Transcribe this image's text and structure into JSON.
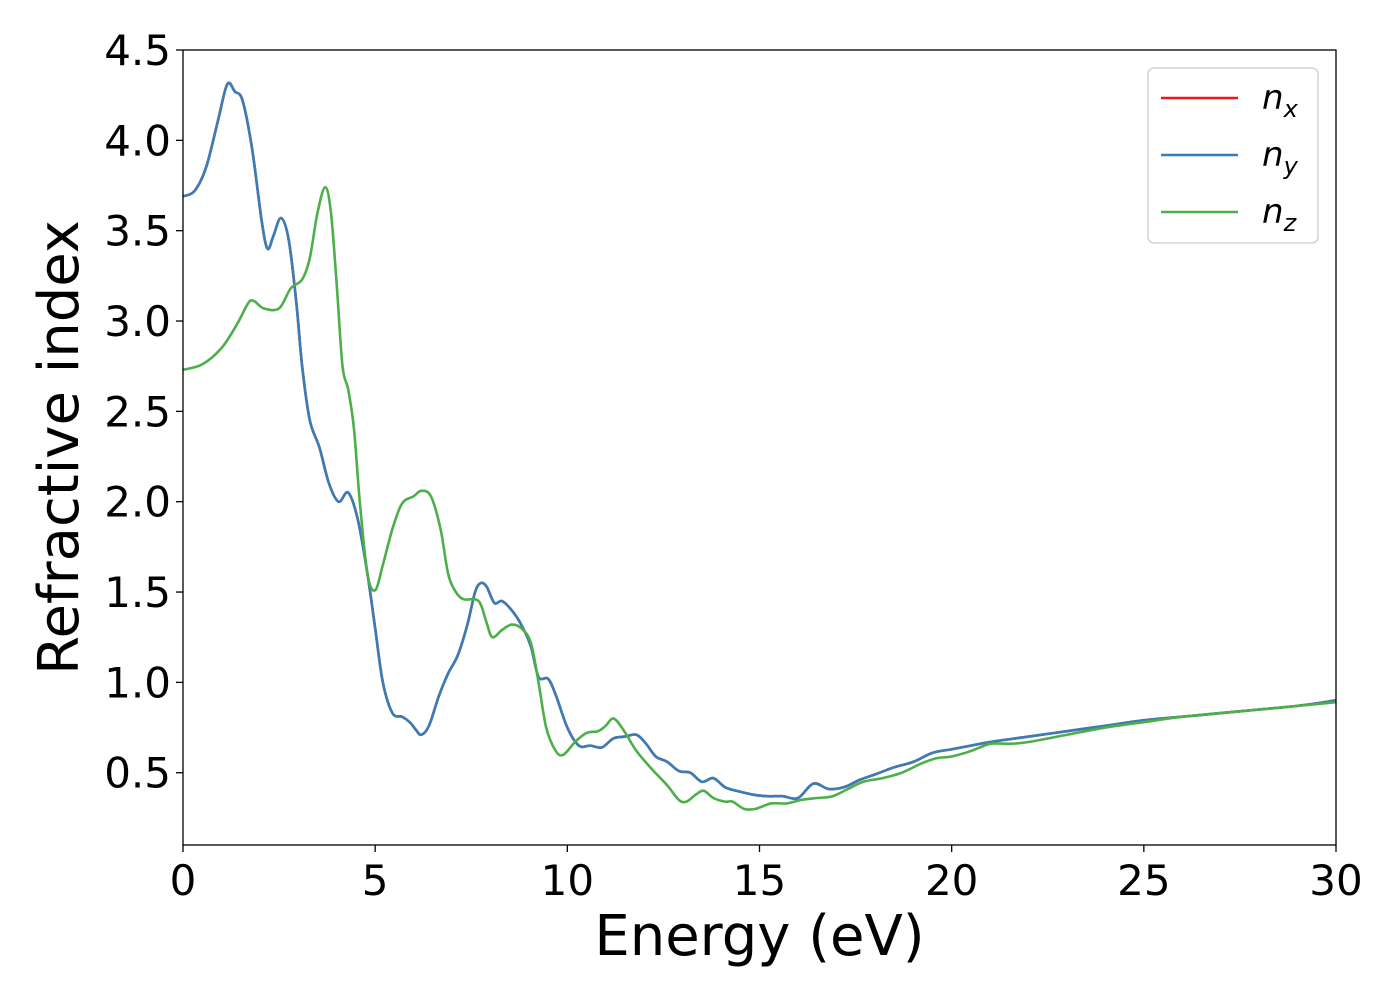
{
  "chart_data": {
    "type": "line",
    "title": "",
    "xlabel": "Energy (eV)",
    "ylabel": "Refractive index",
    "xlim": [
      0,
      30
    ],
    "ylim": [
      0.1,
      4.5
    ],
    "x_ticks": [
      0,
      5,
      10,
      15,
      20,
      25,
      30
    ],
    "x_tick_labels": [
      "0",
      "5",
      "10",
      "15",
      "20",
      "25",
      "30"
    ],
    "y_ticks": [
      0.5,
      1.0,
      1.5,
      2.0,
      2.5,
      3.0,
      3.5,
      4.0,
      4.5
    ],
    "y_tick_labels": [
      "0.5",
      "1.0",
      "1.5",
      "2.0",
      "2.5",
      "3.0",
      "3.5",
      "4.0",
      "4.5"
    ],
    "grid": false,
    "legend_position": "top-right",
    "series": [
      {
        "name": "n",
        "sub": "x",
        "color": "#e41a1c",
        "points": [
          [
            0,
            3.69
          ],
          [
            0.3,
            3.72
          ],
          [
            0.6,
            3.85
          ],
          [
            0.9,
            4.1
          ],
          [
            1.15,
            4.31
          ],
          [
            1.35,
            4.27
          ],
          [
            1.55,
            4.22
          ],
          [
            1.8,
            3.95
          ],
          [
            2.05,
            3.55
          ],
          [
            2.2,
            3.4
          ],
          [
            2.35,
            3.47
          ],
          [
            2.55,
            3.57
          ],
          [
            2.75,
            3.45
          ],
          [
            2.95,
            3.1
          ],
          [
            3.1,
            2.75
          ],
          [
            3.3,
            2.45
          ],
          [
            3.55,
            2.3
          ],
          [
            3.8,
            2.1
          ],
          [
            4.05,
            2.0
          ],
          [
            4.3,
            2.05
          ],
          [
            4.55,
            1.9
          ],
          [
            4.8,
            1.6
          ],
          [
            5.0,
            1.3
          ],
          [
            5.2,
            1.0
          ],
          [
            5.45,
            0.83
          ],
          [
            5.7,
            0.81
          ],
          [
            5.9,
            0.78
          ],
          [
            6.05,
            0.74
          ],
          [
            6.2,
            0.71
          ],
          [
            6.4,
            0.76
          ],
          [
            6.65,
            0.92
          ],
          [
            6.9,
            1.05
          ],
          [
            7.15,
            1.15
          ],
          [
            7.4,
            1.32
          ],
          [
            7.6,
            1.5
          ],
          [
            7.75,
            1.55
          ],
          [
            7.9,
            1.53
          ],
          [
            8.1,
            1.44
          ],
          [
            8.3,
            1.45
          ],
          [
            8.55,
            1.4
          ],
          [
            8.8,
            1.32
          ],
          [
            9.05,
            1.2
          ],
          [
            9.25,
            1.03
          ],
          [
            9.5,
            1.02
          ],
          [
            9.7,
            0.93
          ],
          [
            10.0,
            0.75
          ],
          [
            10.3,
            0.65
          ],
          [
            10.6,
            0.65
          ],
          [
            10.9,
            0.64
          ],
          [
            11.2,
            0.69
          ],
          [
            11.5,
            0.7
          ],
          [
            11.8,
            0.71
          ],
          [
            12.05,
            0.66
          ],
          [
            12.3,
            0.59
          ],
          [
            12.6,
            0.56
          ],
          [
            12.9,
            0.51
          ],
          [
            13.2,
            0.5
          ],
          [
            13.5,
            0.45
          ],
          [
            13.8,
            0.47
          ],
          [
            14.1,
            0.42
          ],
          [
            14.4,
            0.4
          ],
          [
            14.8,
            0.38
          ],
          [
            15.2,
            0.37
          ],
          [
            15.6,
            0.37
          ],
          [
            16.0,
            0.36
          ],
          [
            16.4,
            0.44
          ],
          [
            16.8,
            0.41
          ],
          [
            17.2,
            0.42
          ],
          [
            17.6,
            0.46
          ],
          [
            18.0,
            0.49
          ],
          [
            18.5,
            0.53
          ],
          [
            19.0,
            0.56
          ],
          [
            19.5,
            0.61
          ],
          [
            20.0,
            0.63
          ],
          [
            20.5,
            0.65
          ],
          [
            21.0,
            0.67
          ],
          [
            22.0,
            0.7
          ],
          [
            23.0,
            0.73
          ],
          [
            24.0,
            0.76
          ],
          [
            25.0,
            0.79
          ],
          [
            26.0,
            0.81
          ],
          [
            27.0,
            0.83
          ],
          [
            28.0,
            0.85
          ],
          [
            29.0,
            0.87
          ],
          [
            30.0,
            0.9
          ]
        ]
      },
      {
        "name": "n",
        "sub": "y",
        "color": "#377eb8",
        "points": [
          [
            0,
            3.69
          ],
          [
            0.3,
            3.72
          ],
          [
            0.6,
            3.85
          ],
          [
            0.9,
            4.1
          ],
          [
            1.15,
            4.31
          ],
          [
            1.35,
            4.27
          ],
          [
            1.55,
            4.22
          ],
          [
            1.8,
            3.95
          ],
          [
            2.05,
            3.55
          ],
          [
            2.2,
            3.4
          ],
          [
            2.35,
            3.47
          ],
          [
            2.55,
            3.57
          ],
          [
            2.75,
            3.45
          ],
          [
            2.95,
            3.1
          ],
          [
            3.1,
            2.75
          ],
          [
            3.3,
            2.45
          ],
          [
            3.55,
            2.3
          ],
          [
            3.8,
            2.1
          ],
          [
            4.05,
            2.0
          ],
          [
            4.3,
            2.05
          ],
          [
            4.55,
            1.9
          ],
          [
            4.8,
            1.6
          ],
          [
            5.0,
            1.3
          ],
          [
            5.2,
            1.0
          ],
          [
            5.45,
            0.83
          ],
          [
            5.7,
            0.81
          ],
          [
            5.9,
            0.78
          ],
          [
            6.05,
            0.74
          ],
          [
            6.2,
            0.71
          ],
          [
            6.4,
            0.76
          ],
          [
            6.65,
            0.92
          ],
          [
            6.9,
            1.05
          ],
          [
            7.15,
            1.15
          ],
          [
            7.4,
            1.32
          ],
          [
            7.6,
            1.5
          ],
          [
            7.75,
            1.55
          ],
          [
            7.9,
            1.53
          ],
          [
            8.1,
            1.44
          ],
          [
            8.3,
            1.45
          ],
          [
            8.55,
            1.4
          ],
          [
            8.8,
            1.32
          ],
          [
            9.05,
            1.2
          ],
          [
            9.25,
            1.03
          ],
          [
            9.5,
            1.02
          ],
          [
            9.7,
            0.93
          ],
          [
            10.0,
            0.75
          ],
          [
            10.3,
            0.65
          ],
          [
            10.6,
            0.65
          ],
          [
            10.9,
            0.64
          ],
          [
            11.2,
            0.69
          ],
          [
            11.5,
            0.7
          ],
          [
            11.8,
            0.71
          ],
          [
            12.05,
            0.66
          ],
          [
            12.3,
            0.59
          ],
          [
            12.6,
            0.56
          ],
          [
            12.9,
            0.51
          ],
          [
            13.2,
            0.5
          ],
          [
            13.5,
            0.45
          ],
          [
            13.8,
            0.47
          ],
          [
            14.1,
            0.42
          ],
          [
            14.4,
            0.4
          ],
          [
            14.8,
            0.38
          ],
          [
            15.2,
            0.37
          ],
          [
            15.6,
            0.37
          ],
          [
            16.0,
            0.36
          ],
          [
            16.4,
            0.44
          ],
          [
            16.8,
            0.41
          ],
          [
            17.2,
            0.42
          ],
          [
            17.6,
            0.46
          ],
          [
            18.0,
            0.49
          ],
          [
            18.5,
            0.53
          ],
          [
            19.0,
            0.56
          ],
          [
            19.5,
            0.61
          ],
          [
            20.0,
            0.63
          ],
          [
            20.5,
            0.65
          ],
          [
            21.0,
            0.67
          ],
          [
            22.0,
            0.7
          ],
          [
            23.0,
            0.73
          ],
          [
            24.0,
            0.76
          ],
          [
            25.0,
            0.79
          ],
          [
            26.0,
            0.81
          ],
          [
            27.0,
            0.83
          ],
          [
            28.0,
            0.85
          ],
          [
            29.0,
            0.87
          ],
          [
            30.0,
            0.9
          ]
        ]
      },
      {
        "name": "n",
        "sub": "z",
        "color": "#4daf4a",
        "points": [
          [
            0,
            2.73
          ],
          [
            0.5,
            2.76
          ],
          [
            1.0,
            2.85
          ],
          [
            1.4,
            2.98
          ],
          [
            1.7,
            3.1
          ],
          [
            1.85,
            3.11
          ],
          [
            2.1,
            3.07
          ],
          [
            2.5,
            3.07
          ],
          [
            2.8,
            3.18
          ],
          [
            3.1,
            3.23
          ],
          [
            3.3,
            3.35
          ],
          [
            3.5,
            3.6
          ],
          [
            3.7,
            3.74
          ],
          [
            3.85,
            3.6
          ],
          [
            4.0,
            3.2
          ],
          [
            4.15,
            2.75
          ],
          [
            4.3,
            2.62
          ],
          [
            4.45,
            2.4
          ],
          [
            4.6,
            2.0
          ],
          [
            4.8,
            1.6
          ],
          [
            5.0,
            1.51
          ],
          [
            5.2,
            1.65
          ],
          [
            5.45,
            1.85
          ],
          [
            5.7,
            1.99
          ],
          [
            6.0,
            2.03
          ],
          [
            6.2,
            2.06
          ],
          [
            6.45,
            2.03
          ],
          [
            6.7,
            1.85
          ],
          [
            6.9,
            1.6
          ],
          [
            7.1,
            1.5
          ],
          [
            7.3,
            1.46
          ],
          [
            7.6,
            1.46
          ],
          [
            7.75,
            1.43
          ],
          [
            7.9,
            1.33
          ],
          [
            8.05,
            1.25
          ],
          [
            8.3,
            1.29
          ],
          [
            8.55,
            1.32
          ],
          [
            8.8,
            1.3
          ],
          [
            9.05,
            1.22
          ],
          [
            9.25,
            1.0
          ],
          [
            9.45,
            0.75
          ],
          [
            9.7,
            0.62
          ],
          [
            9.9,
            0.6
          ],
          [
            10.2,
            0.67
          ],
          [
            10.5,
            0.72
          ],
          [
            10.8,
            0.73
          ],
          [
            11.0,
            0.76
          ],
          [
            11.2,
            0.8
          ],
          [
            11.45,
            0.74
          ],
          [
            11.8,
            0.62
          ],
          [
            12.2,
            0.52
          ],
          [
            12.6,
            0.43
          ],
          [
            12.9,
            0.35
          ],
          [
            13.1,
            0.34
          ],
          [
            13.35,
            0.38
          ],
          [
            13.55,
            0.4
          ],
          [
            13.8,
            0.36
          ],
          [
            14.1,
            0.34
          ],
          [
            14.3,
            0.34
          ],
          [
            14.6,
            0.3
          ],
          [
            14.9,
            0.3
          ],
          [
            15.3,
            0.33
          ],
          [
            15.7,
            0.33
          ],
          [
            16.1,
            0.35
          ],
          [
            16.5,
            0.36
          ],
          [
            16.9,
            0.37
          ],
          [
            17.3,
            0.41
          ],
          [
            17.7,
            0.45
          ],
          [
            18.2,
            0.47
          ],
          [
            18.7,
            0.5
          ],
          [
            19.2,
            0.55
          ],
          [
            19.6,
            0.58
          ],
          [
            20.0,
            0.59
          ],
          [
            20.5,
            0.62
          ],
          [
            21.0,
            0.66
          ],
          [
            21.5,
            0.66
          ],
          [
            22.0,
            0.67
          ],
          [
            23.0,
            0.71
          ],
          [
            24.0,
            0.75
          ],
          [
            25.0,
            0.78
          ],
          [
            26.0,
            0.81
          ],
          [
            27.0,
            0.83
          ],
          [
            28.0,
            0.85
          ],
          [
            29.0,
            0.87
          ],
          [
            30.0,
            0.89
          ]
        ]
      }
    ]
  }
}
